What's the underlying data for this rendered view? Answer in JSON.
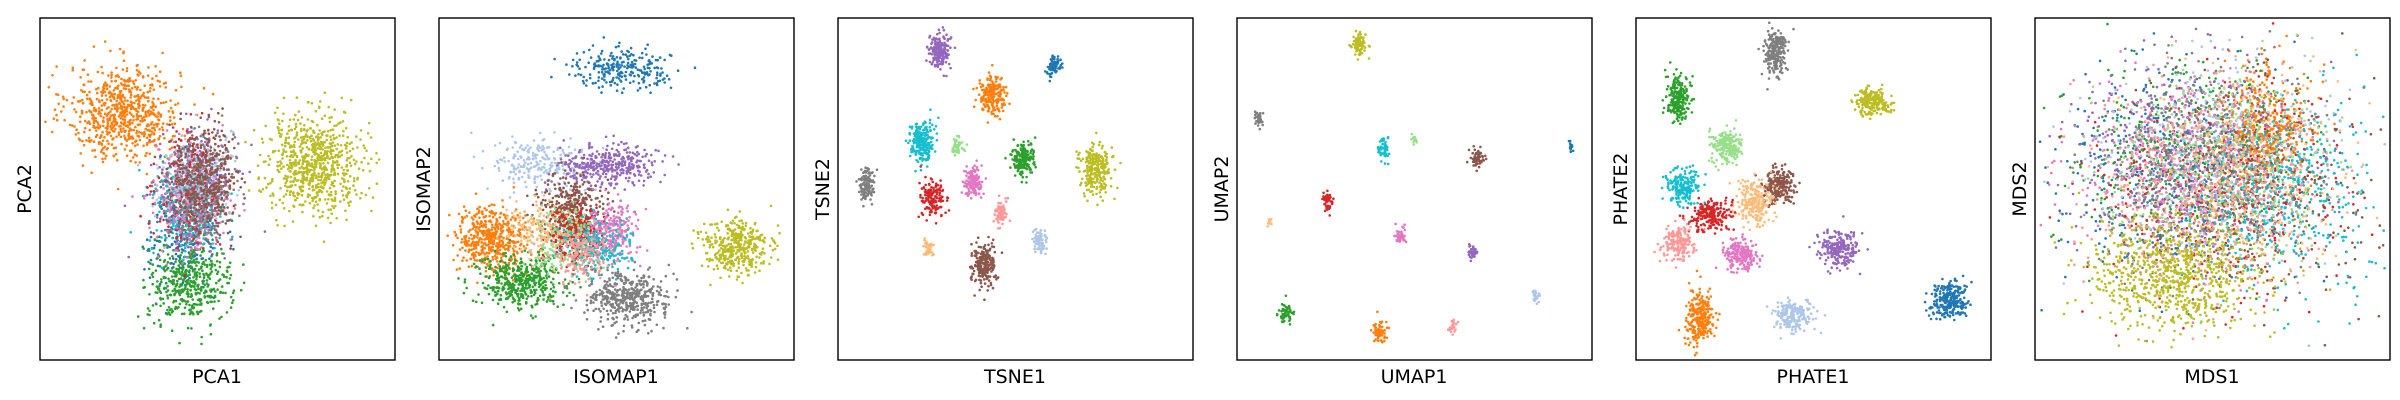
{
  "figure": {
    "title": ""
  },
  "palette": {
    "tab:blue": "#1f77b4",
    "tab:orange": "#ff7f0e",
    "tab:green": "#2ca02c",
    "tab:red": "#d62728",
    "tab:purple": "#9467bd",
    "tab:brown": "#8c564b",
    "tab:pink": "#e377c2",
    "tab:gray": "#7f7f7f",
    "tab:olive": "#bcbd22",
    "tab:cyan": "#17becf",
    "light-blue": "#aec7e8",
    "light-green": "#98df8a",
    "light-red": "#ff9896",
    "light-orange": "#ffbb78"
  },
  "chart_data": [
    {
      "type": "scatter",
      "title": "",
      "xlabel": "PCA1",
      "ylabel": "PCA2",
      "ticks": false,
      "grid": false,
      "xlim": [
        0,
        100
      ],
      "ylim": [
        0,
        100
      ],
      "clusters": [
        {
          "color": "#ff7f0e",
          "center": [
            23,
            73
          ],
          "spread": [
            8,
            7
          ],
          "count": 700
        },
        {
          "color": "#1f77b4",
          "center": [
            40,
            38
          ],
          "spread": [
            5,
            9
          ],
          "count": 300
        },
        {
          "color": "#2ca02c",
          "center": [
            42,
            22
          ],
          "spread": [
            6,
            6
          ],
          "count": 450
        },
        {
          "color": "#9467bd",
          "center": [
            44,
            52
          ],
          "spread": [
            5,
            8
          ],
          "count": 300
        },
        {
          "color": "#17becf",
          "center": [
            41,
            45
          ],
          "spread": [
            5,
            8
          ],
          "count": 300
        },
        {
          "color": "#d62728",
          "center": [
            43,
            50
          ],
          "spread": [
            5,
            8
          ],
          "count": 250
        },
        {
          "color": "#e377c2",
          "center": [
            42,
            47
          ],
          "spread": [
            5,
            8
          ],
          "count": 250
        },
        {
          "color": "#aec7e8",
          "center": [
            43,
            53
          ],
          "spread": [
            5,
            7
          ],
          "count": 250
        },
        {
          "color": "#7f7f7f",
          "center": [
            45,
            48
          ],
          "spread": [
            5,
            8
          ],
          "count": 250
        },
        {
          "color": "#8c564b",
          "center": [
            46,
            53
          ],
          "spread": [
            5,
            8
          ],
          "count": 400
        },
        {
          "color": "#bcbd22",
          "center": [
            78,
            58
          ],
          "spread": [
            7,
            7
          ],
          "count": 750
        }
      ]
    },
    {
      "type": "scatter",
      "title": "",
      "xlabel": "ISOMAP1",
      "ylabel": "ISOMAP2",
      "ticks": false,
      "grid": false,
      "xlim": [
        0,
        100
      ],
      "ylim": [
        0,
        100
      ],
      "clusters": [
        {
          "color": "#1f77b4",
          "center": [
            51,
            86
          ],
          "spread": [
            7,
            3
          ],
          "count": 250
        },
        {
          "color": "#aec7e8",
          "center": [
            29,
            57
          ],
          "spread": [
            7,
            4
          ],
          "count": 250
        },
        {
          "color": "#9467bd",
          "center": [
            48,
            57
          ],
          "spread": [
            7,
            3
          ],
          "count": 350
        },
        {
          "color": "#ff7f0e",
          "center": [
            14,
            35
          ],
          "spread": [
            5,
            5
          ],
          "count": 500
        },
        {
          "color": "#2ca02c",
          "center": [
            22,
            22
          ],
          "spread": [
            6,
            4
          ],
          "count": 450
        },
        {
          "color": "#8c564b",
          "center": [
            37,
            43
          ],
          "spread": [
            5,
            5
          ],
          "count": 400
        },
        {
          "color": "#d62728",
          "center": [
            38,
            36
          ],
          "spread": [
            4,
            4
          ],
          "count": 250
        },
        {
          "color": "#e377c2",
          "center": [
            48,
            38
          ],
          "spread": [
            4,
            4
          ],
          "count": 250
        },
        {
          "color": "#98df8a",
          "center": [
            35,
            34
          ],
          "spread": [
            5,
            5
          ],
          "count": 200
        },
        {
          "color": "#17becf",
          "center": [
            45,
            32
          ],
          "spread": [
            5,
            4
          ],
          "count": 200
        },
        {
          "color": "#ffbb78",
          "center": [
            28,
            38
          ],
          "spread": [
            5,
            4
          ],
          "count": 150
        },
        {
          "color": "#ff9896",
          "center": [
            40,
            30
          ],
          "spread": [
            5,
            4
          ],
          "count": 150
        },
        {
          "color": "#7f7f7f",
          "center": [
            53,
            17
          ],
          "spread": [
            6,
            4
          ],
          "count": 450
        },
        {
          "color": "#bcbd22",
          "center": [
            84,
            33
          ],
          "spread": [
            5,
            4
          ],
          "count": 400
        }
      ]
    },
    {
      "type": "scatter",
      "title": "",
      "xlabel": "TSNE1",
      "ylabel": "TSNE2",
      "ticks": false,
      "grid": false,
      "xlim": [
        0,
        100
      ],
      "ylim": [
        0,
        100
      ],
      "clusters": [
        {
          "color": "#9467bd",
          "center": [
            28,
            91
          ],
          "spread": [
            1.6,
            2.6
          ],
          "count": 180
        },
        {
          "color": "#ff7f0e",
          "center": [
            43,
            78
          ],
          "spread": [
            1.8,
            3.0
          ],
          "count": 220
        },
        {
          "color": "#1f77b4",
          "center": [
            61,
            87
          ],
          "spread": [
            1.0,
            1.6
          ],
          "count": 80
        },
        {
          "color": "#17becf",
          "center": [
            23,
            64
          ],
          "spread": [
            1.8,
            3.2
          ],
          "count": 230
        },
        {
          "color": "#98df8a",
          "center": [
            33,
            63
          ],
          "spread": [
            0.8,
            1.4
          ],
          "count": 50
        },
        {
          "color": "#2ca02c",
          "center": [
            52,
            59
          ],
          "spread": [
            1.6,
            2.6
          ],
          "count": 180
        },
        {
          "color": "#bcbd22",
          "center": [
            73,
            56
          ],
          "spread": [
            2.2,
            3.8
          ],
          "count": 260
        },
        {
          "color": "#7f7f7f",
          "center": [
            7,
            51
          ],
          "spread": [
            1.2,
            2.2
          ],
          "count": 110
        },
        {
          "color": "#e377c2",
          "center": [
            38,
            52
          ],
          "spread": [
            1.4,
            2.4
          ],
          "count": 130
        },
        {
          "color": "#d62728",
          "center": [
            26,
            47
          ],
          "spread": [
            1.6,
            2.8
          ],
          "count": 160
        },
        {
          "color": "#ff9896",
          "center": [
            46,
            43
          ],
          "spread": [
            1.0,
            1.8
          ],
          "count": 80
        },
        {
          "color": "#aec7e8",
          "center": [
            57,
            35
          ],
          "spread": [
            1.0,
            1.8
          ],
          "count": 80
        },
        {
          "color": "#ffbb78",
          "center": [
            25,
            32
          ],
          "spread": [
            0.8,
            1.5
          ],
          "count": 50
        },
        {
          "color": "#8c564b",
          "center": [
            41,
            27
          ],
          "spread": [
            1.8,
            3.2
          ],
          "count": 220
        }
      ]
    },
    {
      "type": "scatter",
      "title": "",
      "xlabel": "UMAP1",
      "ylabel": "UMAP2",
      "ticks": false,
      "grid": false,
      "xlim": [
        0,
        100
      ],
      "ylim": [
        0,
        100
      ],
      "clusters": [
        {
          "color": "#bcbd22",
          "center": [
            34,
            93
          ],
          "spread": [
            1.1,
            1.8
          ],
          "count": 90
        },
        {
          "color": "#7f7f7f",
          "center": [
            5,
            71
          ],
          "spread": [
            0.6,
            1.1
          ],
          "count": 40
        },
        {
          "color": "#17becf",
          "center": [
            41,
            62
          ],
          "spread": [
            0.8,
            1.4
          ],
          "count": 60
        },
        {
          "color": "#98df8a",
          "center": [
            50,
            65
          ],
          "spread": [
            0.4,
            0.8
          ],
          "count": 15
        },
        {
          "color": "#8c564b",
          "center": [
            68,
            59
          ],
          "spread": [
            1.0,
            1.6
          ],
          "count": 60
        },
        {
          "color": "#1f77b4",
          "center": [
            95,
            63
          ],
          "spread": [
            0.4,
            0.8
          ],
          "count": 15
        },
        {
          "color": "#d62728",
          "center": [
            25,
            46
          ],
          "spread": [
            0.8,
            1.4
          ],
          "count": 50
        },
        {
          "color": "#ffbb78",
          "center": [
            8,
            40
          ],
          "spread": [
            0.4,
            0.7
          ],
          "count": 10
        },
        {
          "color": "#e377c2",
          "center": [
            46,
            36
          ],
          "spread": [
            0.8,
            1.3
          ],
          "count": 40
        },
        {
          "color": "#9467bd",
          "center": [
            67,
            31
          ],
          "spread": [
            0.8,
            1.3
          ],
          "count": 40
        },
        {
          "color": "#aec7e8",
          "center": [
            85,
            18
          ],
          "spread": [
            0.6,
            1.0
          ],
          "count": 25
        },
        {
          "color": "#2ca02c",
          "center": [
            13,
            13
          ],
          "spread": [
            0.9,
            1.5
          ],
          "count": 60
        },
        {
          "color": "#ff7f0e",
          "center": [
            40,
            7
          ],
          "spread": [
            1.0,
            1.6
          ],
          "count": 60
        },
        {
          "color": "#ff9896",
          "center": [
            61,
            9
          ],
          "spread": [
            0.6,
            1.0
          ],
          "count": 25
        }
      ]
    },
    {
      "type": "scatter",
      "title": "",
      "xlabel": "PHATE1",
      "ylabel": "PHATE2",
      "ticks": false,
      "grid": false,
      "xlim": [
        0,
        100
      ],
      "ylim": [
        0,
        100
      ],
      "clusters": [
        {
          "color": "#7f7f7f",
          "center": [
            39,
            91
          ],
          "spread": [
            1.6,
            3.5
          ],
          "count": 220
        },
        {
          "color": "#bcbd22",
          "center": [
            67,
            76
          ],
          "spread": [
            2.6,
            2.2
          ],
          "count": 200
        },
        {
          "color": "#2ca02c",
          "center": [
            11,
            77
          ],
          "spread": [
            1.8,
            3.2
          ],
          "count": 220
        },
        {
          "color": "#98df8a",
          "center": [
            25,
            63
          ],
          "spread": [
            2.4,
            2.4
          ],
          "count": 200
        },
        {
          "color": "#17becf",
          "center": [
            12,
            51
          ],
          "spread": [
            2.2,
            2.6
          ],
          "count": 200
        },
        {
          "color": "#8c564b",
          "center": [
            40,
            51
          ],
          "spread": [
            2.2,
            2.6
          ],
          "count": 220
        },
        {
          "color": "#ffbb78",
          "center": [
            33,
            46
          ],
          "spread": [
            2.6,
            3.2
          ],
          "count": 220
        },
        {
          "color": "#d62728",
          "center": [
            20,
            42
          ],
          "spread": [
            2.8,
            2.4
          ],
          "count": 220
        },
        {
          "color": "#ff9896",
          "center": [
            11,
            34
          ],
          "spread": [
            2.4,
            2.4
          ],
          "count": 180
        },
        {
          "color": "#e377c2",
          "center": [
            29,
            30
          ],
          "spread": [
            2.4,
            2.4
          ],
          "count": 200
        },
        {
          "color": "#9467bd",
          "center": [
            57,
            32
          ],
          "spread": [
            3.0,
            2.6
          ],
          "count": 220
        },
        {
          "color": "#1f77b4",
          "center": [
            89,
            17
          ],
          "spread": [
            2.6,
            3.0
          ],
          "count": 240
        },
        {
          "color": "#aec7e8",
          "center": [
            44,
            12
          ],
          "spread": [
            3.0,
            2.4
          ],
          "count": 200
        },
        {
          "color": "#ff7f0e",
          "center": [
            17,
            11
          ],
          "spread": [
            2.0,
            4.0
          ],
          "count": 260
        }
      ]
    },
    {
      "type": "scatter",
      "title": "",
      "xlabel": "MDS1",
      "ylabel": "MDS2",
      "ticks": false,
      "grid": false,
      "xlim": [
        0,
        100
      ],
      "ylim": [
        0,
        100
      ],
      "clusters": [
        {
          "color": "#1f77b4",
          "center": [
            35,
            55
          ],
          "spread": [
            16,
            16
          ],
          "count": 400
        },
        {
          "color": "#ff7f0e",
          "center": [
            65,
            67
          ],
          "spread": [
            6,
            9
          ],
          "count": 500
        },
        {
          "color": "#2ca02c",
          "center": [
            42,
            58
          ],
          "spread": [
            17,
            15
          ],
          "count": 400
        },
        {
          "color": "#d62728",
          "center": [
            52,
            48
          ],
          "spread": [
            17,
            16
          ],
          "count": 400
        },
        {
          "color": "#9467bd",
          "center": [
            45,
            62
          ],
          "spread": [
            16,
            15
          ],
          "count": 400
        },
        {
          "color": "#8c564b",
          "center": [
            62,
            50
          ],
          "spread": [
            16,
            16
          ],
          "count": 400
        },
        {
          "color": "#e377c2",
          "center": [
            40,
            55
          ],
          "spread": [
            16,
            15
          ],
          "count": 400
        },
        {
          "color": "#7f7f7f",
          "center": [
            48,
            55
          ],
          "spread": [
            17,
            16
          ],
          "count": 400
        },
        {
          "color": "#17becf",
          "center": [
            72,
            48
          ],
          "spread": [
            13,
            14
          ],
          "count": 450
        },
        {
          "color": "#aec7e8",
          "center": [
            50,
            60
          ],
          "spread": [
            16,
            15
          ],
          "count": 350
        },
        {
          "color": "#98df8a",
          "center": [
            55,
            58
          ],
          "spread": [
            16,
            15
          ],
          "count": 350
        },
        {
          "color": "#ff9896",
          "center": [
            45,
            50
          ],
          "spread": [
            16,
            15
          ],
          "count": 350
        },
        {
          "color": "#ffbb78",
          "center": [
            58,
            55
          ],
          "spread": [
            16,
            15
          ],
          "count": 350
        },
        {
          "color": "#bcbd22",
          "center": [
            40,
            24
          ],
          "spread": [
            12,
            8
          ],
          "count": 800
        }
      ]
    }
  ]
}
